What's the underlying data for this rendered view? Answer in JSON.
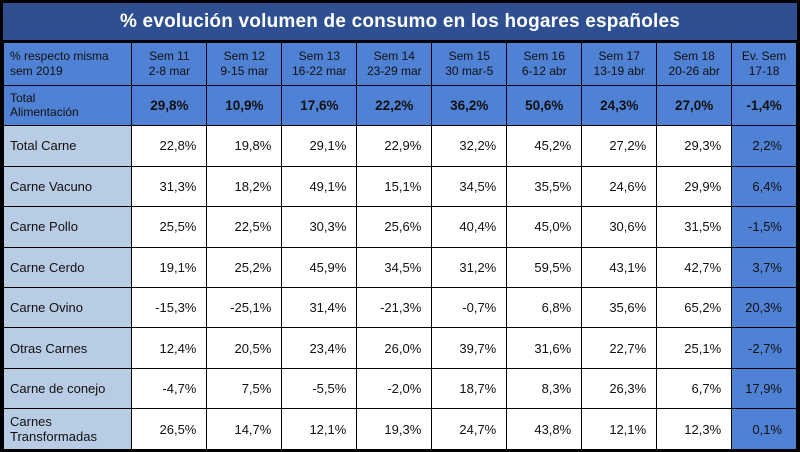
{
  "title": "% evolución volumen de consumo en los hogares españoles",
  "header": {
    "first_col": [
      "% respecto misma",
      "sem  2019"
    ],
    "weeks": [
      [
        "Sem 11",
        "2-8 mar"
      ],
      [
        "Sem 12",
        "9-15 mar"
      ],
      [
        "Sem 13",
        "16-22 mar"
      ],
      [
        "Sem 14",
        "23-29 mar"
      ],
      [
        "Sem 15",
        "30 mar-5"
      ],
      [
        "Sem 16",
        "6-12 abr"
      ],
      [
        "Sem 17",
        "13-19 abr"
      ],
      [
        "Sem 18",
        "20-26 abr"
      ]
    ],
    "ev": [
      "Ev. Sem",
      "17-18"
    ]
  },
  "rows": [
    {
      "label": [
        "Total",
        "Alimentación"
      ],
      "values": [
        "29,8%",
        "10,9%",
        "17,6%",
        "22,2%",
        "36,2%",
        "50,6%",
        "24,3%",
        "27,0%"
      ],
      "ev": "-1,4%"
    },
    {
      "label": [
        "Total Carne"
      ],
      "values": [
        "22,8%",
        "19,8%",
        "29,1%",
        "22,9%",
        "32,2%",
        "45,2%",
        "27,2%",
        "29,3%"
      ],
      "ev": "2,2%"
    },
    {
      "label": [
        "Carne Vacuno"
      ],
      "values": [
        "31,3%",
        "18,2%",
        "49,1%",
        "15,1%",
        "34,5%",
        "35,5%",
        "24,6%",
        "29,9%"
      ],
      "ev": "6,4%"
    },
    {
      "label": [
        "Carne Pollo"
      ],
      "values": [
        "25,5%",
        "22,5%",
        "30,3%",
        "25,6%",
        "40,4%",
        "45,0%",
        "30,6%",
        "31,5%"
      ],
      "ev": "-1,5%"
    },
    {
      "label": [
        "Carne Cerdo"
      ],
      "values": [
        "19,1%",
        "25,2%",
        "45,9%",
        "34,5%",
        "31,2%",
        "59,5%",
        "43,1%",
        "42,7%"
      ],
      "ev": "3,7%"
    },
    {
      "label": [
        "Carne Ovino"
      ],
      "values": [
        "-15,3%",
        "-25,1%",
        "31,4%",
        "-21,3%",
        "-0,7%",
        "6,8%",
        "35,6%",
        "65,2%"
      ],
      "ev": "20,3%"
    },
    {
      "label": [
        "Otras Carnes"
      ],
      "values": [
        "12,4%",
        "20,5%",
        "23,4%",
        "26,0%",
        "39,7%",
        "31,6%",
        "22,7%",
        "25,1%"
      ],
      "ev": "-2,7%"
    },
    {
      "label": [
        "Carne de conejo"
      ],
      "values": [
        "-4,7%",
        "7,5%",
        "-5,5%",
        "-2,0%",
        "18,7%",
        "8,3%",
        "26,3%",
        "6,7%"
      ],
      "ev": "17,9%"
    },
    {
      "label": [
        "Carnes",
        "Transformadas"
      ],
      "values": [
        "26,5%",
        "14,7%",
        "12,1%",
        "19,3%",
        "24,7%",
        "43,8%",
        "12,1%",
        "12,3%"
      ],
      "ev": "0,1%"
    }
  ]
}
